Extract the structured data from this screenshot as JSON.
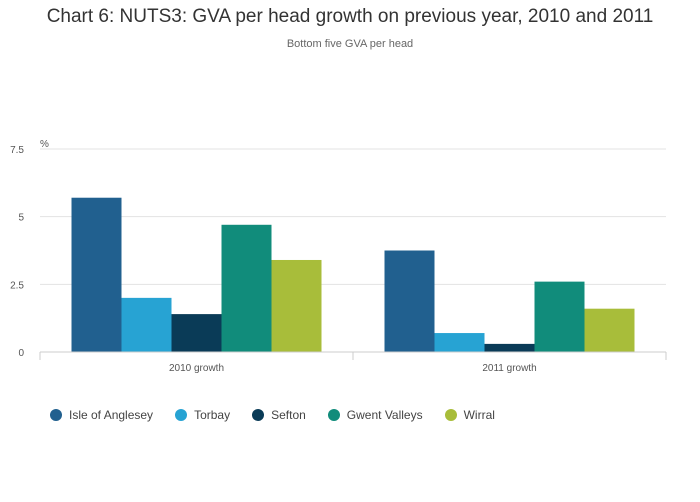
{
  "chart_data": {
    "type": "bar",
    "title": "Chart 6: NUTS3: GVA per head growth on previous year, 2010 and 2011",
    "subtitle": "Bottom five GVA per head",
    "ylabel": "%",
    "xlabel": "",
    "ylim": [
      0,
      7.5
    ],
    "yticks": [
      "0",
      "2.5",
      "5",
      "7.5"
    ],
    "ytick_values": [
      0,
      2.5,
      5,
      7.5
    ],
    "categories": [
      "2010 growth",
      "2011 growth"
    ],
    "series": [
      {
        "name": "Isle of Anglesey",
        "color": "#21608f",
        "values": [
          5.7,
          3.75
        ]
      },
      {
        "name": "Torbay",
        "color": "#27a3d3",
        "values": [
          2.0,
          0.7
        ]
      },
      {
        "name": "Sefton",
        "color": "#0a3b57",
        "values": [
          1.4,
          0.3
        ]
      },
      {
        "name": "Gwent Valleys",
        "color": "#118c7b",
        "values": [
          4.7,
          2.6
        ]
      },
      {
        "name": "Wirral",
        "color": "#a8bd3a",
        "values": [
          3.4,
          1.6
        ]
      }
    ],
    "grid": true,
    "legend_position": "bottom-left"
  }
}
